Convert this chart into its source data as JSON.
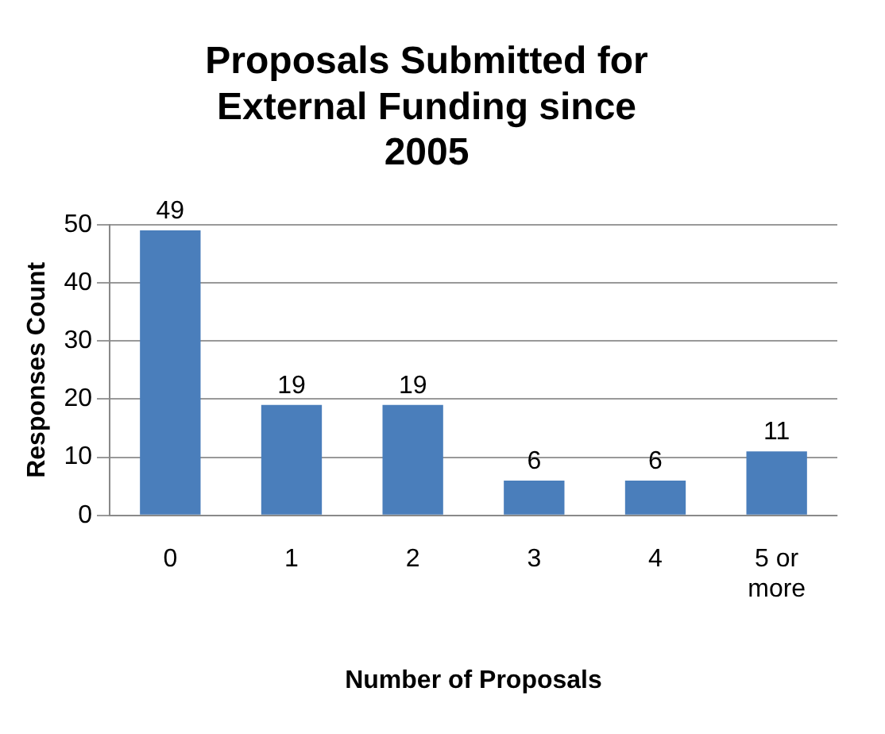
{
  "chart_data": {
    "type": "bar",
    "title": "Proposals Submitted for External Funding since 2005",
    "xlabel": "Number of Proposals",
    "ylabel": "Responses Count",
    "categories": [
      "0",
      "1",
      "2",
      "3",
      "4",
      "5 or more"
    ],
    "values": [
      49,
      19,
      19,
      6,
      6,
      11
    ],
    "color": "#4a7ebb",
    "ylim": [
      0,
      50
    ],
    "yticks": [
      0,
      10,
      20,
      30,
      40,
      50
    ],
    "grid": "y",
    "data_labels": true,
    "legend": false
  }
}
